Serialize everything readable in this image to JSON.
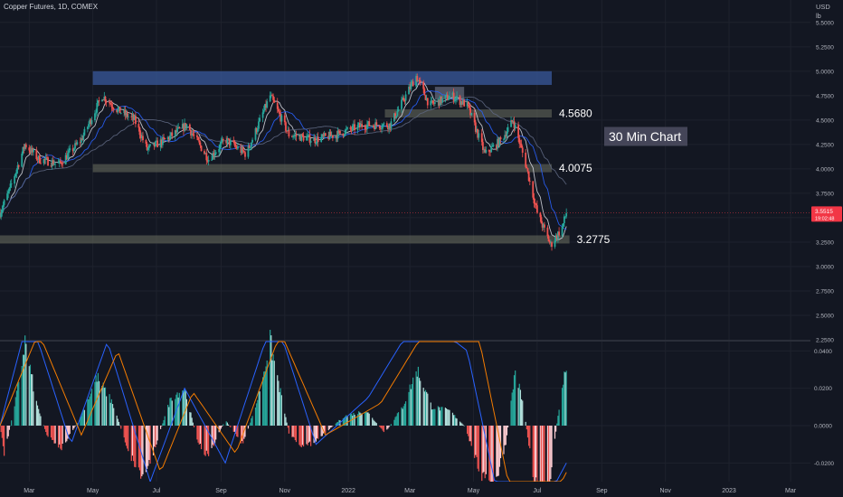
{
  "header": {
    "title": "Copper Futures, 1D, COMEX"
  },
  "price_axis": {
    "currency": "USD",
    "unit": "lb",
    "ticks": [
      {
        "v": 5.5,
        "label": "5.5000"
      },
      {
        "v": 5.25,
        "label": "5.2500"
      },
      {
        "v": 5.0,
        "label": "5.0000"
      },
      {
        "v": 4.75,
        "label": "4.7500"
      },
      {
        "v": 4.5,
        "label": "4.5000"
      },
      {
        "v": 4.25,
        "label": "4.2500"
      },
      {
        "v": 4.0,
        "label": "4.0000"
      },
      {
        "v": 3.75,
        "label": "3.7500"
      },
      {
        "v": 3.5,
        "label": "3.5000"
      },
      {
        "v": 3.25,
        "label": "3.2500"
      },
      {
        "v": 3.0,
        "label": "3.0000"
      },
      {
        "v": 2.75,
        "label": "2.7500"
      },
      {
        "v": 2.5,
        "label": "2.5000"
      },
      {
        "v": 2.25,
        "label": "2.2500"
      }
    ],
    "last_price": {
      "value": 3.5515,
      "label": "3.5515",
      "countdown": "19:02:48",
      "color": "#f23645"
    }
  },
  "osc_axis": {
    "ticks": [
      {
        "v": 0.04,
        "label": "0.0400"
      },
      {
        "v": 0.02,
        "label": "0.0200"
      },
      {
        "v": 0.0,
        "label": "0.0000"
      },
      {
        "v": -0.02,
        "label": "-0.0200"
      }
    ]
  },
  "time_axis": {
    "ticks": [
      {
        "label": "Mar",
        "date": "2021-03-01"
      },
      {
        "label": "May",
        "date": "2021-05-01"
      },
      {
        "label": "Jul",
        "date": "2021-07-01"
      },
      {
        "label": "Sep",
        "date": "2021-09-01"
      },
      {
        "label": "Nov",
        "date": "2021-11-01"
      },
      {
        "label": "2022",
        "date": "2022-01-01"
      },
      {
        "label": "Mar",
        "date": "2022-03-01"
      },
      {
        "label": "May",
        "date": "2022-05-01"
      },
      {
        "label": "Jul",
        "date": "2022-07-01"
      },
      {
        "label": "Sep",
        "date": "2022-09-01"
      },
      {
        "label": "Nov",
        "date": "2022-11-01"
      },
      {
        "label": "2023",
        "date": "2023-01-01"
      },
      {
        "label": "Mar",
        "date": "2023-03-01"
      }
    ]
  },
  "annotations": {
    "zones": [
      {
        "name": "resistance-zone",
        "from": "2021-05-01",
        "to": "2022-07-15",
        "low": 4.86,
        "high": 5.0,
        "color": "#3a5a9c"
      },
      {
        "name": "top-zone",
        "from": "2022-03-25",
        "to": "2022-04-22",
        "low": 4.71,
        "high": 4.84,
        "color": "#7f8599"
      }
    ],
    "levels": [
      {
        "name": "level-4-5680",
        "value": 4.568,
        "label": "4.5680",
        "from": "2022-02-05",
        "to": "2022-07-15"
      },
      {
        "name": "level-4-0075",
        "value": 4.0075,
        "label": "4.0075",
        "from": "2021-05-01",
        "to": "2022-07-15"
      },
      {
        "name": "level-3-2775",
        "value": 3.2775,
        "label": "3.2775",
        "from": "2021-02-01",
        "to": "2022-08-01"
      }
    ],
    "note": {
      "text": "30 Min Chart"
    }
  },
  "chart_data": [
    {
      "type": "candlestick",
      "title": "Copper Futures, 1D, COMEX",
      "ylabel": "USD lb",
      "ylim": [
        2.25,
        5.6
      ],
      "xlim": [
        "2021-02-01",
        "2023-03-20"
      ],
      "grid": true,
      "price_path": [
        [
          "2021-02-01",
          3.55
        ],
        [
          "2021-02-10",
          3.78
        ],
        [
          "2021-02-25",
          4.25
        ],
        [
          "2021-03-10",
          4.1
        ],
        [
          "2021-03-30",
          4.05
        ],
        [
          "2021-04-20",
          4.3
        ],
        [
          "2021-05-10",
          4.75
        ],
        [
          "2021-05-25",
          4.6
        ],
        [
          "2021-06-10",
          4.5
        ],
        [
          "2021-06-22",
          4.2
        ],
        [
          "2021-07-10",
          4.3
        ],
        [
          "2021-07-30",
          4.45
        ],
        [
          "2021-08-20",
          4.1
        ],
        [
          "2021-09-05",
          4.3
        ],
        [
          "2021-09-25",
          4.15
        ],
        [
          "2021-10-18",
          4.75
        ],
        [
          "2021-11-05",
          4.35
        ],
        [
          "2021-11-30",
          4.3
        ],
        [
          "2021-12-20",
          4.35
        ],
        [
          "2022-01-15",
          4.45
        ],
        [
          "2022-02-10",
          4.45
        ],
        [
          "2022-03-07",
          4.95
        ],
        [
          "2022-03-20",
          4.65
        ],
        [
          "2022-04-10",
          4.75
        ],
        [
          "2022-04-25",
          4.65
        ],
        [
          "2022-05-12",
          4.15
        ],
        [
          "2022-05-28",
          4.3
        ],
        [
          "2022-06-08",
          4.5
        ],
        [
          "2022-06-20",
          4.05
        ],
        [
          "2022-07-01",
          3.55
        ],
        [
          "2022-07-14",
          3.22
        ],
        [
          "2022-07-25",
          3.4
        ],
        [
          "2022-07-29",
          3.5515
        ]
      ]
    },
    {
      "type": "bar",
      "title": "",
      "ylim": [
        -0.03,
        0.045
      ],
      "grid": true,
      "histogram_path": [
        [
          "2021-02-01",
          0.0
        ],
        [
          "2021-02-05",
          -0.015
        ],
        [
          "2021-02-15",
          0.01
        ],
        [
          "2021-02-25",
          0.045
        ],
        [
          "2021-03-08",
          0.012
        ],
        [
          "2021-03-18",
          -0.005
        ],
        [
          "2021-04-01",
          -0.012
        ],
        [
          "2021-04-18",
          0.003
        ],
        [
          "2021-05-05",
          0.026
        ],
        [
          "2021-05-20",
          0.012
        ],
        [
          "2021-06-05",
          -0.015
        ],
        [
          "2021-06-18",
          -0.028
        ],
        [
          "2021-06-28",
          -0.014
        ],
        [
          "2021-07-15",
          0.015
        ],
        [
          "2021-07-28",
          0.02
        ],
        [
          "2021-08-10",
          -0.01
        ],
        [
          "2021-08-20",
          -0.016
        ],
        [
          "2021-09-05",
          0.003
        ],
        [
          "2021-09-22",
          -0.01
        ],
        [
          "2021-10-05",
          0.012
        ],
        [
          "2021-10-18",
          0.045
        ],
        [
          "2021-11-05",
          -0.004
        ],
        [
          "2021-11-20",
          -0.012
        ],
        [
          "2021-12-05",
          -0.006
        ],
        [
          "2021-12-28",
          0.005
        ],
        [
          "2022-01-18",
          0.008
        ],
        [
          "2022-02-05",
          -0.004
        ],
        [
          "2022-02-22",
          0.01
        ],
        [
          "2022-03-08",
          0.03
        ],
        [
          "2022-03-22",
          0.01
        ],
        [
          "2022-04-08",
          0.008
        ],
        [
          "2022-04-22",
          0.0
        ],
        [
          "2022-05-08",
          -0.025
        ],
        [
          "2022-05-20",
          -0.035
        ],
        [
          "2022-06-01",
          -0.01
        ],
        [
          "2022-06-10",
          0.03
        ],
        [
          "2022-06-18",
          0.01
        ],
        [
          "2022-06-28",
          -0.03
        ],
        [
          "2022-07-12",
          -0.035
        ],
        [
          "2022-07-22",
          0.01
        ],
        [
          "2022-07-29",
          0.034
        ]
      ],
      "signal_path": [
        [
          "2021-02-01",
          0.0
        ],
        [
          "2021-03-01",
          0.06
        ],
        [
          "2021-04-10",
          -0.01
        ],
        [
          "2021-05-15",
          0.045
        ],
        [
          "2021-06-25",
          -0.03
        ],
        [
          "2021-07-28",
          0.02
        ],
        [
          "2021-09-05",
          -0.02
        ],
        [
          "2021-10-22",
          0.06
        ],
        [
          "2021-12-01",
          -0.01
        ],
        [
          "2022-01-20",
          0.015
        ],
        [
          "2022-03-10",
          0.06
        ],
        [
          "2022-04-25",
          0.04
        ],
        [
          "2022-05-25",
          -0.04
        ],
        [
          "2022-07-10",
          -0.04
        ],
        [
          "2022-07-29",
          -0.02
        ]
      ],
      "slow_path": [
        [
          "2021-02-01",
          0.0
        ],
        [
          "2021-03-10",
          0.05
        ],
        [
          "2021-04-20",
          -0.005
        ],
        [
          "2021-05-25",
          0.04
        ],
        [
          "2021-07-05",
          -0.025
        ],
        [
          "2021-08-05",
          0.018
        ],
        [
          "2021-09-15",
          -0.015
        ],
        [
          "2021-10-28",
          0.05
        ],
        [
          "2021-12-10",
          -0.005
        ],
        [
          "2022-02-01",
          0.012
        ],
        [
          "2022-03-20",
          0.055
        ],
        [
          "2022-05-05",
          0.05
        ],
        [
          "2022-06-05",
          -0.035
        ],
        [
          "2022-07-20",
          -0.035
        ],
        [
          "2022-07-29",
          -0.025
        ]
      ]
    }
  ]
}
